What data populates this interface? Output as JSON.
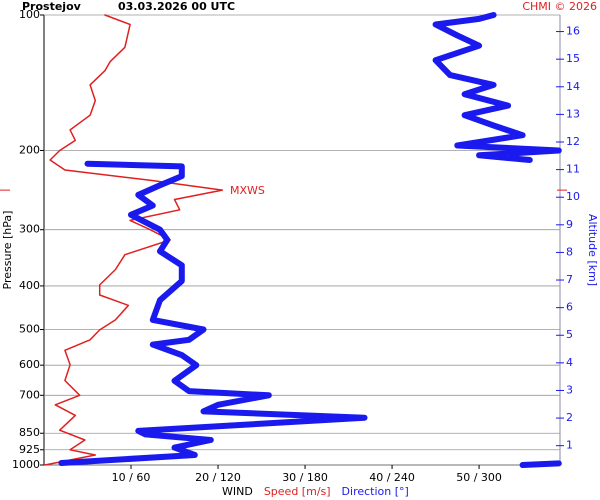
{
  "chart_data": {
    "type": "line",
    "title": "Prostejov",
    "subtitle": "03.03.2026 00 UTC",
    "credit": "CHMI © 2026",
    "x_label": "WIND",
    "y_label": "Pressure [hPa]",
    "y2_label": "Altitude [km]",
    "y_scale": "log",
    "grid": true,
    "ylim": [
      1000,
      100
    ],
    "yticks": [
      100,
      200,
      300,
      400,
      500,
      600,
      700,
      850,
      925,
      1000
    ],
    "xlim": [
      0,
      59.3
    ],
    "xticks": [
      {
        "value": 10,
        "label": "10 / 60"
      },
      {
        "value": 20,
        "label": "20 / 120"
      },
      {
        "value": 30,
        "label": "30 / 180"
      },
      {
        "value": 40,
        "label": "40 / 240"
      },
      {
        "value": 50,
        "label": "50 / 300"
      }
    ],
    "x2lim": [
      0,
      355.8
    ],
    "y2lim": [
      0.3,
      16.6
    ],
    "y2ticks": [
      1,
      2,
      3,
      4,
      5,
      6,
      7,
      8,
      9,
      10,
      11,
      12,
      13,
      14,
      15,
      16
    ],
    "annotations": [
      {
        "text": "MXWS",
        "y": 245,
        "color": "#e02020"
      }
    ],
    "series": [
      {
        "name": "Speed [m/s]",
        "color": "#e02020",
        "y": [
          1000,
          950,
          925,
          880,
          837,
          776,
          735,
          700,
          649,
          599,
          556,
          527,
          501,
          476,
          442,
          419,
          398,
          368,
          341,
          316,
          300,
          286,
          271,
          257,
          245,
          233,
          221,
          210,
          200,
          190,
          180,
          167,
          155,
          143,
          133,
          127,
          118,
          105,
          100
        ],
        "values": [
          0.1,
          5.9,
          3,
          4.7,
          1.8,
          3.6,
          1.3,
          4.1,
          2.4,
          3,
          2.4,
          5.3,
          6.4,
          8.2,
          9.7,
          6.4,
          6.4,
          8.2,
          9.3,
          14.5,
          12.2,
          9.9,
          15.6,
          15,
          20.5,
          12.2,
          2.4,
          0.7,
          1.8,
          3.6,
          3,
          5.3,
          5.9,
          5.3,
          7,
          7.6,
          9.3,
          9.9,
          7
        ]
      },
      {
        "name": "Direction [°]",
        "color": "#1a1aee",
        "axis": "x2",
        "y": [
          1000,
          992,
          null,
          990,
          950,
          915,
          880,
          855,
          840,
          785,
          760,
          735,
          700,
          685,
          650,
          600,
          570,
          540,
          527,
          500,
          476,
          430,
          390,
          360,
          335,
          316,
          300,
          278,
          265,
          251,
          239,
          228,
          217,
          214,
          null,
          210,
          205,
          200,
          195,
          185,
          176,
          167,
          159,
          150,
          143,
          136,
          126,
          117,
          111,
          105,
          102,
          100
        ],
        "values": [
          330,
          355,
          null,
          12,
          104,
          90,
          115,
          70,
          65,
          221,
          110,
          120,
          155,
          100,
          90,
          105,
          95,
          75,
          100,
          110,
          75,
          80,
          95,
          95,
          80,
          85,
          80,
          60,
          75,
          65,
          80,
          95,
          95,
          30,
          null,
          335,
          300,
          355,
          285,
          330,
          310,
          290,
          320,
          290,
          310,
          280,
          270,
          300,
          285,
          270,
          300,
          310
        ]
      }
    ]
  }
}
